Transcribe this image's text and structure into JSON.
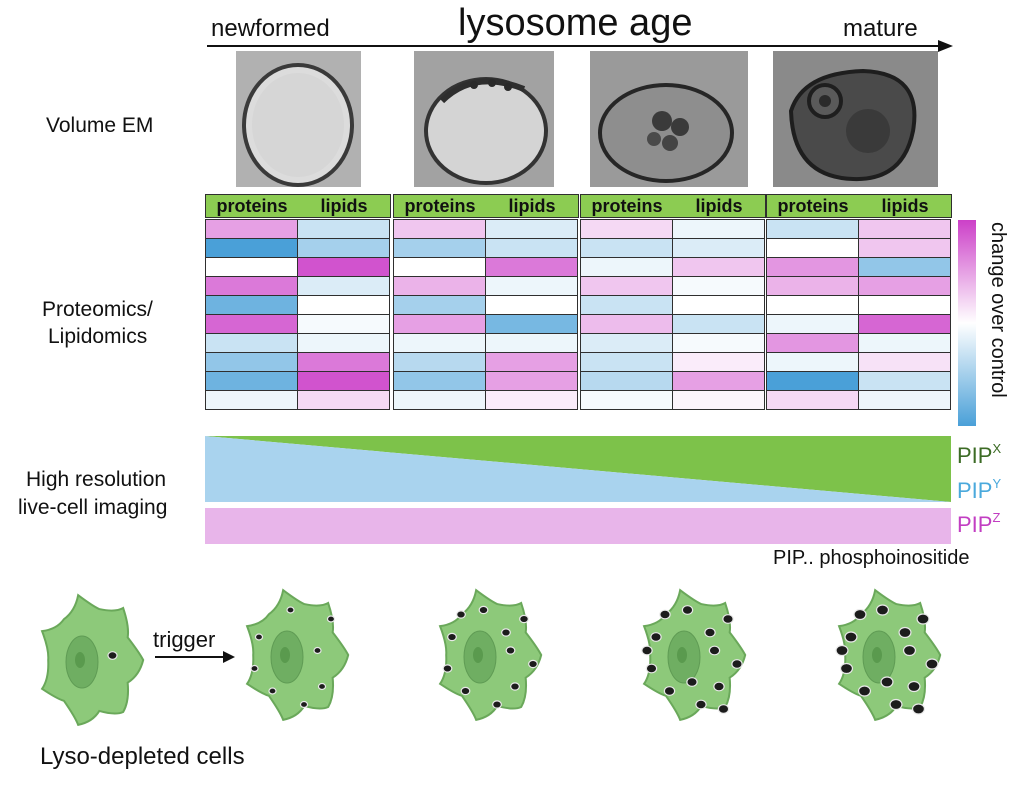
{
  "title": "lysosome age",
  "arrow": {
    "start_label": "newformed",
    "end_label": "mature"
  },
  "rows": {
    "em_label": "Volume EM",
    "omics_label_line1": "Proteomics/",
    "omics_label_line2": "Lipidomics",
    "imaging_label_line1": "High resolution",
    "imaging_label_line2": "live-cell imaging"
  },
  "heatmap": {
    "stages": [
      {
        "headers": [
          "proteins",
          "lipids"
        ],
        "proteins": [
          0.5,
          -1.5,
          0,
          0.7,
          -0.8,
          0.8,
          -0.3,
          -0.6,
          -0.8,
          -0.1
        ],
        "lipids": [
          -0.3,
          -0.5,
          0.9,
          -0.2,
          0,
          -0.05,
          -0.1,
          0.7,
          0.9,
          0.2
        ]
      },
      {
        "headers": [
          "proteins",
          "lipids"
        ],
        "proteins": [
          0.3,
          -0.5,
          0,
          0.4,
          -0.5,
          0.5,
          -0.1,
          -0.4,
          -0.6,
          -0.1
        ],
        "lipids": [
          -0.2,
          -0.3,
          0.7,
          -0.1,
          0,
          -0.75,
          -0.1,
          0.5,
          0.5,
          0.1
        ]
      },
      {
        "headers": [
          "proteins",
          "lipids"
        ],
        "proteins": [
          0.2,
          -0.3,
          -0.1,
          0.3,
          -0.3,
          0.35,
          -0.2,
          -0.3,
          -0.4,
          -0.05
        ],
        "lipids": [
          -0.1,
          -0.2,
          0.3,
          -0.05,
          0,
          -0.3,
          -0.05,
          0.1,
          0.5,
          0.05
        ]
      },
      {
        "headers": [
          "proteins",
          "lipids"
        ],
        "proteins": [
          -0.3,
          0,
          0.55,
          0.4,
          0,
          -0.1,
          0.55,
          -0.1,
          -1.0,
          0.2
        ],
        "lipids": [
          0.3,
          0.3,
          -0.6,
          0.5,
          0,
          0.8,
          -0.1,
          0.15,
          -0.3,
          -0.1
        ]
      }
    ],
    "legend_label": "change over control",
    "colors": {
      "high": "#cc40c8",
      "mid": "#ffffff",
      "low": "#4aa0d8",
      "header": "#8ccc52"
    }
  },
  "pip": {
    "x_label": "PIP",
    "x_sup": "X",
    "x_color": "#7dc24a",
    "y_label": "PIP",
    "y_sup": "Y",
    "y_color": "#a9d3ee",
    "z_label": "PIP",
    "z_sup": "Z",
    "z_color": "#e8b5ea",
    "note": "PIP.. phosphoinositide",
    "label_colors": {
      "x": "#3c6b25",
      "y": "#4aa9dc",
      "z": "#c23ec2"
    }
  },
  "cells": {
    "trigger_label": "trigger",
    "caption": "Lyso-depleted cells",
    "lysosome_counts": [
      1,
      8,
      11,
      14,
      14
    ]
  }
}
